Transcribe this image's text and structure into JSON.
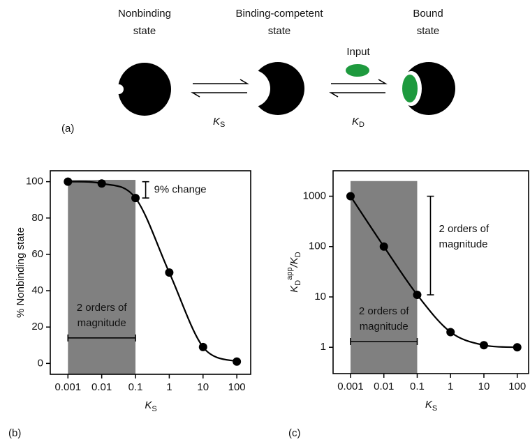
{
  "diagram": {
    "panel_label": "(a)",
    "states": [
      [
        "Nonbinding",
        "state"
      ],
      [
        "Binding-competent",
        "state"
      ],
      [
        "Bound",
        "state"
      ]
    ],
    "input_label": "Input",
    "ks": {
      "main": "K",
      "sub": "S"
    },
    "kd": {
      "main": "K",
      "sub": "D"
    }
  },
  "chart_data": [
    {
      "type": "line",
      "panel_label": "(b)",
      "color": "#000000",
      "shade_color": "#808080",
      "xlabel": {
        "main": "K",
        "sub": "S"
      },
      "ylabel": "% Nonbinding state",
      "x": [
        0.001,
        0.01,
        0.1,
        1,
        10,
        100
      ],
      "values": [
        100,
        99,
        91,
        50,
        9,
        1
      ],
      "xlog": true,
      "ylog": false,
      "xlim": [
        0.0003,
        270
      ],
      "ylim": [
        -6,
        106
      ],
      "xticks": [
        0.001,
        0.01,
        0.1,
        1,
        10,
        100
      ],
      "yticks": [
        0,
        20,
        40,
        60,
        80,
        100
      ],
      "shade": {
        "x": [
          0.001,
          0.1
        ],
        "y": [
          -6,
          101
        ]
      },
      "annotations": [
        {
          "lines": [
            "9% change"
          ],
          "x": 0.2,
          "y": [
            100,
            91
          ]
        },
        {
          "lines": [
            "2 orders of",
            "magnitude"
          ],
          "x": [
            0.001,
            0.1
          ],
          "y": 14
        }
      ]
    },
    {
      "type": "line",
      "panel_label": "(c)",
      "color": "#000000",
      "shade_color": "#808080",
      "xlabel": {
        "main": "K",
        "sub": "S"
      },
      "ylabel": [
        {
          "main": "K",
          "sub": "D",
          "sup": "app"
        },
        {
          "main": "/K",
          "sub": "D"
        }
      ],
      "x": [
        0.001,
        0.01,
        0.1,
        1,
        10,
        100
      ],
      "values": [
        1000,
        100,
        11,
        2,
        1.1,
        1
      ],
      "xlog": true,
      "ylog": true,
      "xlim": [
        0.0003,
        230
      ],
      "ylim": [
        0.3,
        3200
      ],
      "xticks": [
        0.001,
        0.01,
        0.1,
        1,
        10,
        100
      ],
      "yticks": [
        1,
        10,
        100,
        1000
      ],
      "shade": {
        "x": [
          0.001,
          0.1
        ],
        "y": [
          0.3,
          2000
        ]
      },
      "annotations": [
        {
          "lines": [
            "2 orders of",
            "magnitude"
          ],
          "x": 0.25,
          "y": [
            11,
            1000
          ]
        },
        {
          "lines": [
            "2 orders of",
            "magnitude"
          ],
          "x": [
            0.001,
            0.1
          ],
          "y": 1.3
        }
      ]
    }
  ]
}
